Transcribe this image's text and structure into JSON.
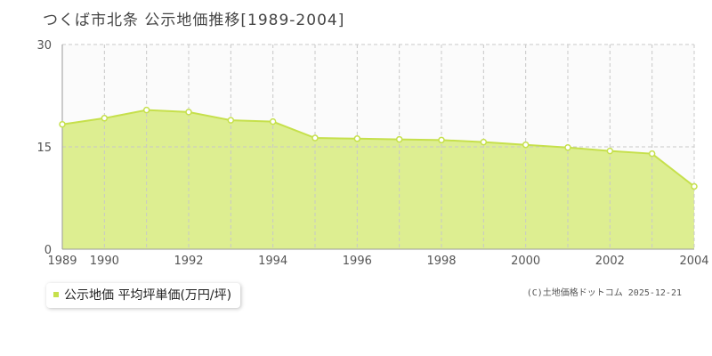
{
  "title": "つくば市北条  公示地価推移[1989-2004]",
  "legend": {
    "label": "公示地価 平均坪単価(万円/坪)"
  },
  "credit": "(C)土地価格ドットコム 2025-12-21",
  "colors": {
    "fill": "#ddee91",
    "line": "#c6e04c",
    "grid": "#c8c8c8"
  },
  "chart_data": {
    "type": "area",
    "title": "つくば市北条  公示地価推移[1989-2004]",
    "xlabel": "",
    "ylabel": "",
    "x": [
      1989,
      1990,
      1991,
      1992,
      1993,
      1994,
      1995,
      1996,
      1997,
      1998,
      1999,
      2000,
      2001,
      2002,
      2003,
      2004
    ],
    "series": [
      {
        "name": "公示地価 平均坪単価(万円/坪)",
        "values": [
          18.3,
          19.2,
          20.4,
          20.1,
          18.9,
          18.7,
          16.3,
          16.2,
          16.1,
          16.0,
          15.7,
          15.3,
          14.9,
          14.4,
          14.0,
          9.2
        ]
      }
    ],
    "ylim": [
      0,
      30
    ],
    "yticks": [
      0,
      15,
      30
    ],
    "xticks": [
      1989,
      1990,
      1992,
      1994,
      1996,
      1998,
      2000,
      2002,
      2004
    ],
    "grid": true,
    "legend_position": "bottom-left"
  }
}
